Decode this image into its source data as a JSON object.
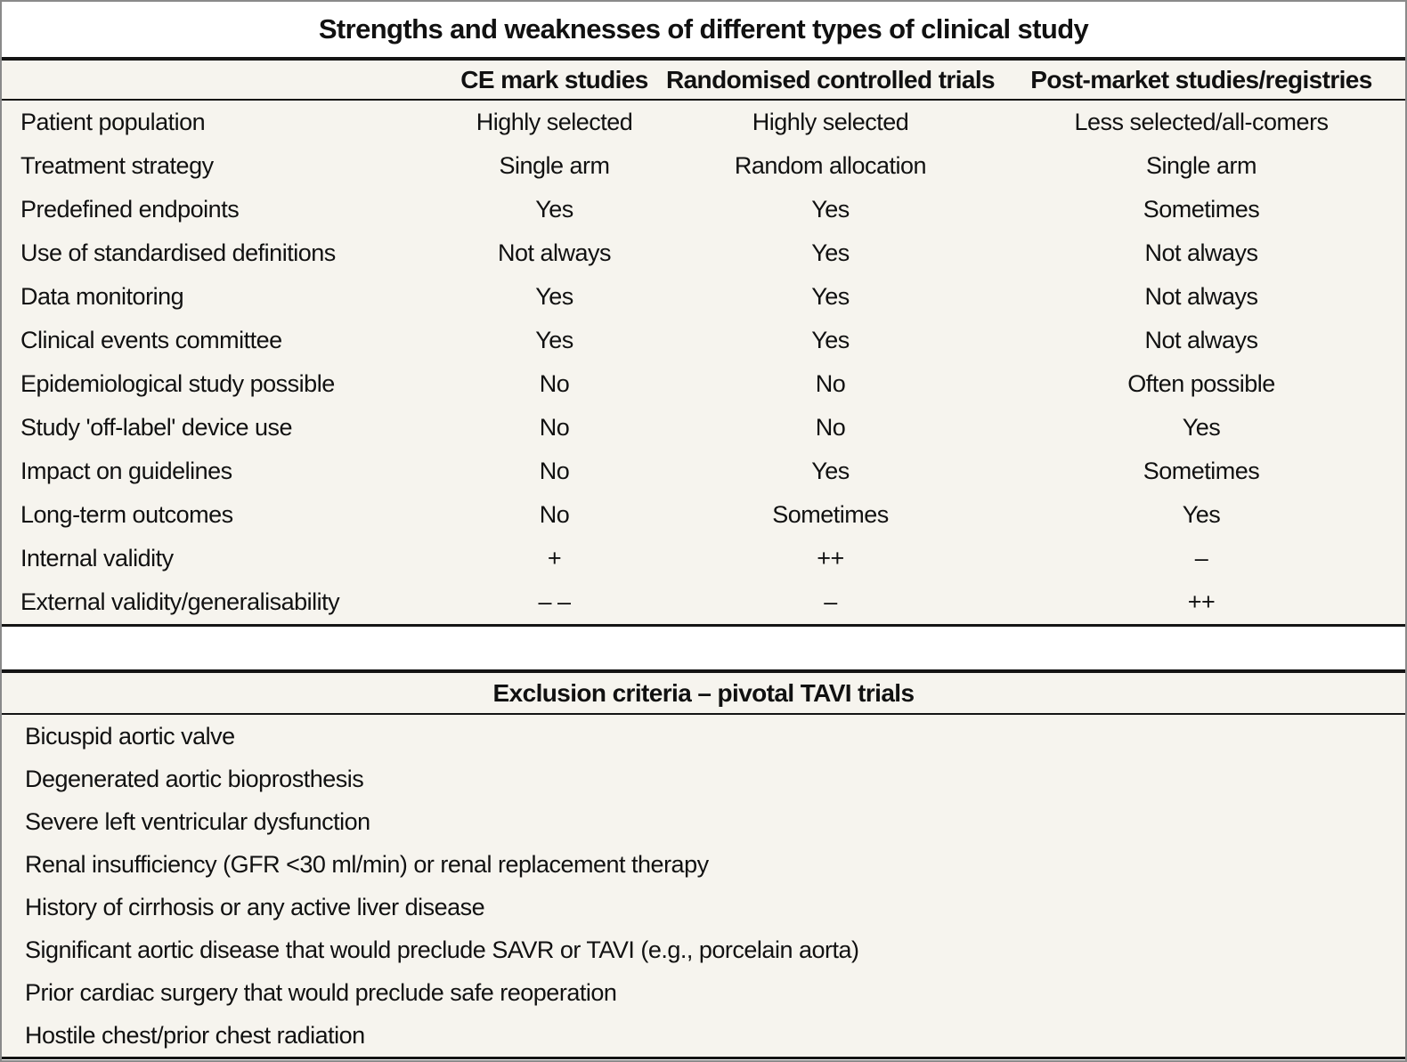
{
  "page": {
    "background": "#ffffff",
    "panel_background": "#f6f4ee",
    "rule_color": "#141414",
    "frame_color": "#8a8a8a",
    "text_color": "#111111"
  },
  "study_table": {
    "title": "Strengths and weaknesses of different types of clinical study",
    "columns": [
      "CE mark studies",
      "Randomised controlled trials",
      "Post-market studies/registries"
    ],
    "rows": [
      {
        "label": "Patient population",
        "values": [
          "Highly selected",
          "Highly selected",
          "Less selected/all-comers"
        ]
      },
      {
        "label": "Treatment strategy",
        "values": [
          "Single arm",
          "Random allocation",
          "Single arm"
        ]
      },
      {
        "label": "Predefined endpoints",
        "values": [
          "Yes",
          "Yes",
          "Sometimes"
        ]
      },
      {
        "label": "Use of standardised definitions",
        "values": [
          "Not always",
          "Yes",
          "Not always"
        ]
      },
      {
        "label": "Data monitoring",
        "values": [
          "Yes",
          "Yes",
          "Not always"
        ]
      },
      {
        "label": "Clinical events committee",
        "values": [
          "Yes",
          "Yes",
          "Not always"
        ]
      },
      {
        "label": "Epidemiological study possible",
        "values": [
          "No",
          "No",
          "Often possible"
        ]
      },
      {
        "label": "Study 'off-label' device use",
        "values": [
          "No",
          "No",
          "Yes"
        ]
      },
      {
        "label": "Impact on guidelines",
        "values": [
          "No",
          "Yes",
          "Sometimes"
        ]
      },
      {
        "label": "Long-term outcomes",
        "values": [
          "No",
          "Sometimes",
          "Yes"
        ]
      },
      {
        "label": "Internal validity",
        "values": [
          "+",
          "++",
          "–"
        ]
      },
      {
        "label": "External validity/generalisability",
        "values": [
          "– –",
          "–",
          "++"
        ]
      }
    ]
  },
  "exclusion_table": {
    "title": "Exclusion criteria – pivotal TAVI trials",
    "items": [
      "Bicuspid aortic valve",
      "Degenerated aortic bioprosthesis",
      "Severe left ventricular dysfunction",
      "Renal insufficiency (GFR <30 ml/min) or renal replacement therapy",
      "History of cirrhosis or any active liver disease",
      "Significant aortic disease that would preclude SAVR or TAVI (e.g., porcelain aorta)",
      "Prior cardiac surgery that would preclude safe reoperation",
      "Hostile chest/prior chest radiation"
    ]
  }
}
